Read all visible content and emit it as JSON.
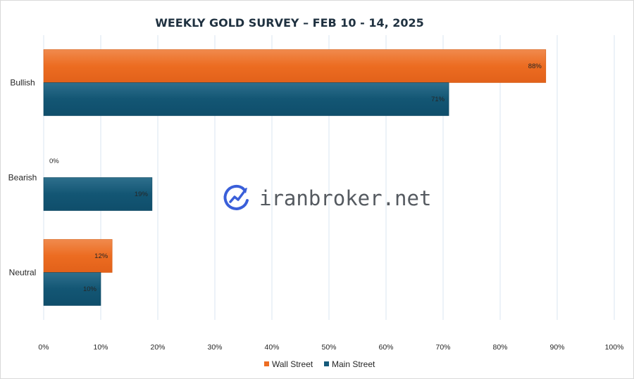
{
  "chart_data": {
    "type": "bar",
    "orientation": "horizontal",
    "title": "WEEKLY GOLD SURVEY – FEB 10 - 14, 2025",
    "categories": [
      "Bullish",
      "Bearish",
      "Neutral"
    ],
    "series": [
      {
        "name": "Wall Street",
        "values": [
          88,
          0,
          12
        ],
        "labels": [
          "88%",
          "0%",
          "12%"
        ],
        "color": "#ed6d22"
      },
      {
        "name": "Main Street",
        "values": [
          71,
          19,
          10
        ],
        "labels": [
          "71%",
          "19%",
          "10%"
        ],
        "color": "#155a7a"
      }
    ],
    "xlim": [
      0,
      100
    ],
    "xticks": [
      "0%",
      "10%",
      "20%",
      "30%",
      "40%",
      "50%",
      "60%",
      "70%",
      "80%",
      "90%",
      "100%"
    ],
    "grid": true,
    "legend_position": "bottom"
  },
  "watermark": {
    "text": "iranbroker.net",
    "icon": "iranbroker-logo-icon",
    "color": "#3a5fd9"
  }
}
